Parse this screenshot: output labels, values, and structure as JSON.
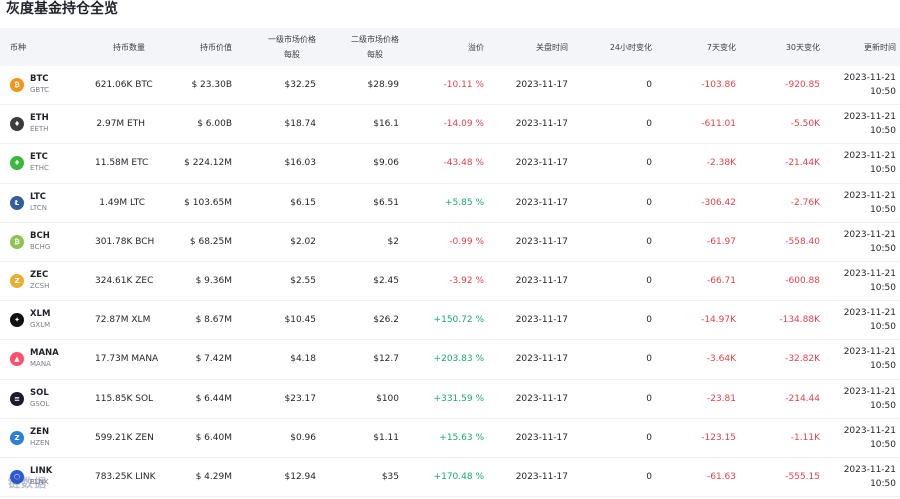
{
  "title": "灰度基金持仓全览",
  "headers": {
    "coin": "币种",
    "holdings": "持币数量",
    "value": "持币价值",
    "primary_price": [
      "一级市场价格",
      "每股"
    ],
    "secondary_price": [
      "二级市场价格",
      "每股"
    ],
    "premium": "溢价",
    "close_time": "关盘时间",
    "change_24h": "24小时变化",
    "change_7d": "7天变化",
    "change_30d": "30天变化",
    "update_time": "更新时间"
  },
  "rows": [
    {
      "sym": "BTC",
      "ticker": "GBTC",
      "icon_color": "#f7931a",
      "icon_glyph": "₿",
      "holdings": "621.06K BTC",
      "value": "$ 23.30B",
      "p1": "$32.25",
      "p2": "$28.99",
      "premium": "-10.11 %",
      "premium_sign": "neg",
      "date": "2023-11-17",
      "c24": "0",
      "c7": "-103.86",
      "c30": "-920.85",
      "upd_date": "2023-11-21",
      "upd_time": "10:50"
    },
    {
      "sym": "ETH",
      "ticker": "EETH",
      "icon_color": "#3c3c3d",
      "icon_glyph": "♦",
      "holdings": "2.97M ETH",
      "value": "$ 6.00B",
      "p1": "$18.74",
      "p2": "$16.1",
      "premium": "-14.09 %",
      "premium_sign": "neg",
      "date": "2023-11-17",
      "c24": "0",
      "c7": "-611.01",
      "c30": "-5.50K",
      "upd_date": "2023-11-21",
      "upd_time": "10:50"
    },
    {
      "sym": "ETC",
      "ticker": "ETHC",
      "icon_color": "#3ab83a",
      "icon_glyph": "♦",
      "holdings": "11.58M ETC",
      "value": "$ 224.12M",
      "p1": "$16.03",
      "p2": "$9.06",
      "premium": "-43.48 %",
      "premium_sign": "neg",
      "date": "2023-11-17",
      "c24": "0",
      "c7": "-2.38K",
      "c30": "-21.44K",
      "upd_date": "2023-11-21",
      "upd_time": "10:50"
    },
    {
      "sym": "LTC",
      "ticker": "LTCN",
      "icon_color": "#345d9d",
      "icon_glyph": "Ł",
      "holdings": "1.49M LTC",
      "value": "$ 103.65M",
      "p1": "$6.15",
      "p2": "$6.51",
      "premium": "+5.85 %",
      "premium_sign": "pos",
      "date": "2023-11-17",
      "c24": "0",
      "c7": "-306.42",
      "c30": "-2.76K",
      "upd_date": "2023-11-21",
      "upd_time": "10:50"
    },
    {
      "sym": "BCH",
      "ticker": "BCHG",
      "icon_color": "#8dc351",
      "icon_glyph": "₿",
      "holdings": "301.78K BCH",
      "value": "$ 68.25M",
      "p1": "$2.02",
      "p2": "$2",
      "premium": "-0.99 %",
      "premium_sign": "neg",
      "date": "2023-11-17",
      "c24": "0",
      "c7": "-61.97",
      "c30": "-558.40",
      "upd_date": "2023-11-21",
      "upd_time": "10:50"
    },
    {
      "sym": "ZEC",
      "ticker": "ZCSH",
      "icon_color": "#e8b030",
      "icon_glyph": "Z",
      "holdings": "324.61K ZEC",
      "value": "$ 9.36M",
      "p1": "$2.55",
      "p2": "$2.45",
      "premium": "-3.92 %",
      "premium_sign": "neg",
      "date": "2023-11-17",
      "c24": "0",
      "c7": "-66.71",
      "c30": "-600.88",
      "upd_date": "2023-11-21",
      "upd_time": "10:50"
    },
    {
      "sym": "XLM",
      "ticker": "GXLM",
      "icon_color": "#111111",
      "icon_glyph": "✦",
      "holdings": "72.87M XLM",
      "value": "$ 8.67M",
      "p1": "$10.45",
      "p2": "$26.2",
      "premium": "+150.72 %",
      "premium_sign": "pos",
      "date": "2023-11-17",
      "c24": "0",
      "c7": "-14.97K",
      "c30": "-134.88K",
      "upd_date": "2023-11-21",
      "upd_time": "10:50"
    },
    {
      "sym": "MANA",
      "ticker": "MANA",
      "icon_color": "#ff4f6a",
      "icon_glyph": "▲",
      "holdings": "17.73M MANA",
      "value": "$ 7.42M",
      "p1": "$4.18",
      "p2": "$12.7",
      "premium": "+203.83 %",
      "premium_sign": "pos",
      "date": "2023-11-17",
      "c24": "0",
      "c7": "-3.64K",
      "c30": "-32.82K",
      "upd_date": "2023-11-21",
      "upd_time": "10:50"
    },
    {
      "sym": "SOL",
      "ticker": "GSOL",
      "icon_color": "#1b1b2f",
      "icon_glyph": "≡",
      "holdings": "115.85K SOL",
      "value": "$ 6.44M",
      "p1": "$23.17",
      "p2": "$100",
      "premium": "+331.59 %",
      "premium_sign": "pos",
      "date": "2023-11-17",
      "c24": "0",
      "c7": "-23.81",
      "c30": "-214.44",
      "upd_date": "2023-11-21",
      "upd_time": "10:50"
    },
    {
      "sym": "ZEN",
      "ticker": "HZEN",
      "icon_color": "#2e7dd6",
      "icon_glyph": "Z",
      "holdings": "599.21K ZEN",
      "value": "$ 6.40M",
      "p1": "$0.96",
      "p2": "$1.11",
      "premium": "+15.63 %",
      "premium_sign": "pos",
      "date": "2023-11-17",
      "c24": "0",
      "c7": "-123.15",
      "c30": "-1.11K",
      "upd_date": "2023-11-21",
      "upd_time": "10:50"
    },
    {
      "sym": "LINK",
      "ticker": "BLNK",
      "icon_color": "#2a5ada",
      "icon_glyph": "⬡",
      "holdings": "783.25K LINK",
      "value": "$ 4.29M",
      "p1": "$12.94",
      "p2": "$35",
      "premium": "+170.48 %",
      "premium_sign": "pos",
      "date": "2023-11-17",
      "c24": "0",
      "c7": "-61.63",
      "c30": "-555.15",
      "upd_date": "2023-11-21",
      "upd_time": "10:50"
    }
  ],
  "watermark": "链数据"
}
